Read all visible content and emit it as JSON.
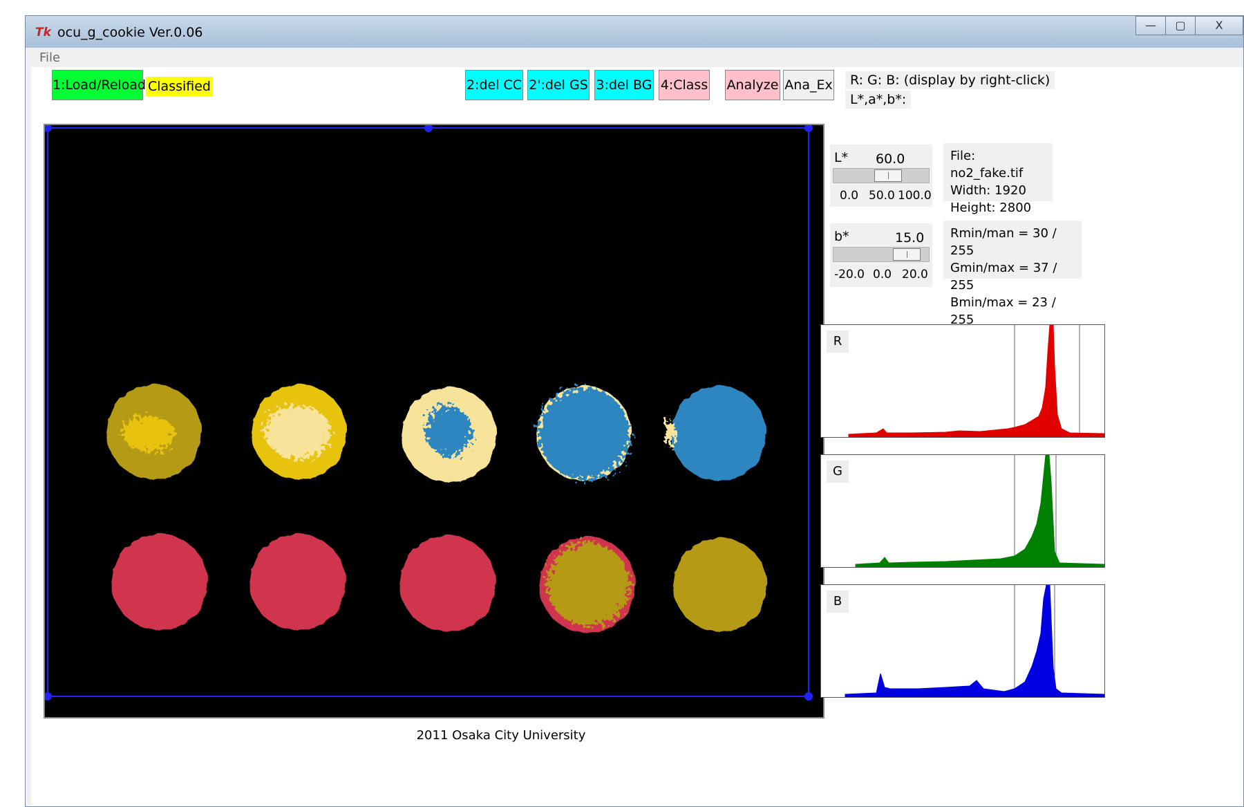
{
  "window": {
    "title": "ocu_g_cookie Ver.0.06",
    "app_icon": "Tk",
    "minimize": "—",
    "maximize": "▢",
    "close": "X"
  },
  "menubar": {
    "file": "File"
  },
  "toolbar": {
    "load": "1:Load/Reload",
    "status": "Classified",
    "del_cc": "2:del CC",
    "del_gs": "2':del GS",
    "del_bg": "3:del BG",
    "class": "4:Class",
    "analyze": "Analyze",
    "ana_ex": "Ana_Ex"
  },
  "rgb_readout": "R: G: B: (display by right-click)",
  "lab_readout": "L*,a*,b*:",
  "slider_l": {
    "name": "L*",
    "value": "60.0",
    "ticks": [
      "0.0",
      "50.0",
      "100.0"
    ],
    "level": 0.6
  },
  "slider_b": {
    "name": "b*",
    "value": "15.0",
    "ticks": [
      "-20.0",
      "0.0",
      "20.0"
    ],
    "level": 0.875
  },
  "file_info": {
    "file": "File: no2_fake.tif",
    "width": "Width: 1920",
    "height": "Height: 2800"
  },
  "rgb_range": {
    "r": "Rmin/man = 30 / 255",
    "g": "Gmin/max = 37 / 255",
    "b": "Bmin/max = 23 / 255"
  },
  "histograms": [
    {
      "label": "R",
      "color": "#e00000"
    },
    {
      "label": "G",
      "color": "#008000"
    },
    {
      "label": "B",
      "color": "#0000e0"
    }
  ],
  "colors": {
    "load_button": "#00ff33",
    "status_badge": "#ffff00",
    "delete_buttons": "#00ffff",
    "class_buttons": "#ffc0cb",
    "cookie_olive": "#b59a16",
    "cookie_gold": "#e8c30c",
    "cookie_cream": "#f7e39a",
    "cookie_blue": "#2e86c1",
    "cookie_red": "#d1344d"
  },
  "footer": "2011 Osaka City University"
}
